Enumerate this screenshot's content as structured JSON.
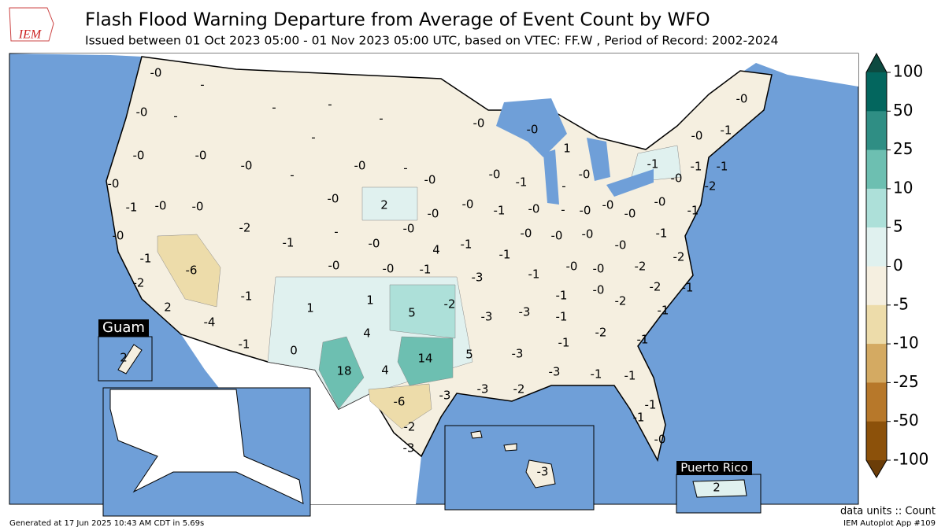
{
  "header": {
    "logo": "IEM",
    "title": "Flash Flood Warning Departure from Average of Event Count by WFO",
    "subtitle": "Issued between 01 Oct 2023 05:00 - 01 Nov 2023 05:00 UTC, based on VTEC: FF.W  , Period of Record: 2002-2024"
  },
  "colorbar": {
    "ticks": [
      100,
      50,
      25,
      10,
      5,
      0,
      -5,
      -10,
      -25,
      -50,
      -100
    ],
    "colors": [
      "#03665e",
      "#2f8e84",
      "#6dbfb1",
      "#ade0d9",
      "#e0f1ef",
      "#f5efe0",
      "#eddcaa",
      "#d4aa62",
      "#b7782a",
      "#8c510a"
    ],
    "over_color": "#0c4a40",
    "under_color": "#6b3d08"
  },
  "map": {
    "insets": {
      "guam": "Guam",
      "puerto_rico": "Puerto Rico"
    },
    "labels": [
      "-0",
      "-",
      "-0",
      "-",
      "-0",
      "-0",
      "-0",
      "-",
      "-",
      "-",
      "-",
      "-",
      "-0",
      "-",
      "-0",
      "2",
      "-0",
      "-0",
      "-0",
      "-0",
      "-0",
      "-1",
      "-0",
      "1",
      "-0",
      "-",
      "-0",
      "-1",
      "-0",
      "-",
      "-0",
      "-0",
      "-0",
      "-0",
      "-0",
      "-1",
      "-1",
      "-1",
      "-2",
      "-1",
      "-0",
      "-1",
      "-0",
      "-0",
      "-1",
      "-0",
      "-0",
      "-0",
      "-1",
      "-6",
      "-2",
      "-1",
      "-",
      "-0",
      "-0",
      "-0",
      "-1",
      "4",
      "-1",
      "-3",
      "-1",
      "-0",
      "-0",
      "-0",
      "-0",
      "-1",
      "-2",
      "-2",
      "-0",
      "-0",
      "-1",
      "-2",
      "2",
      "-4",
      "-1",
      "1",
      "1",
      "4",
      "5",
      "-2",
      "-3",
      "-3",
      "-1",
      "-0",
      "-2",
      "-2",
      "-1",
      "-1",
      "-1",
      "-1",
      "-2",
      "-1",
      "-1",
      "0",
      "18",
      "4",
      "14",
      "5",
      "-3",
      "-3",
      "-1",
      "-1",
      "-1",
      "-1",
      "-0",
      "-3",
      "-3",
      "-2",
      "-6",
      "-2",
      "-3",
      "-3",
      "2",
      "2"
    ]
  },
  "footer": {
    "generated": "Generated at 17 Jun 2025 10:43 AM CDT in 5.69s",
    "units": "data units :: Count",
    "app": "IEM Autoplot App #109"
  }
}
